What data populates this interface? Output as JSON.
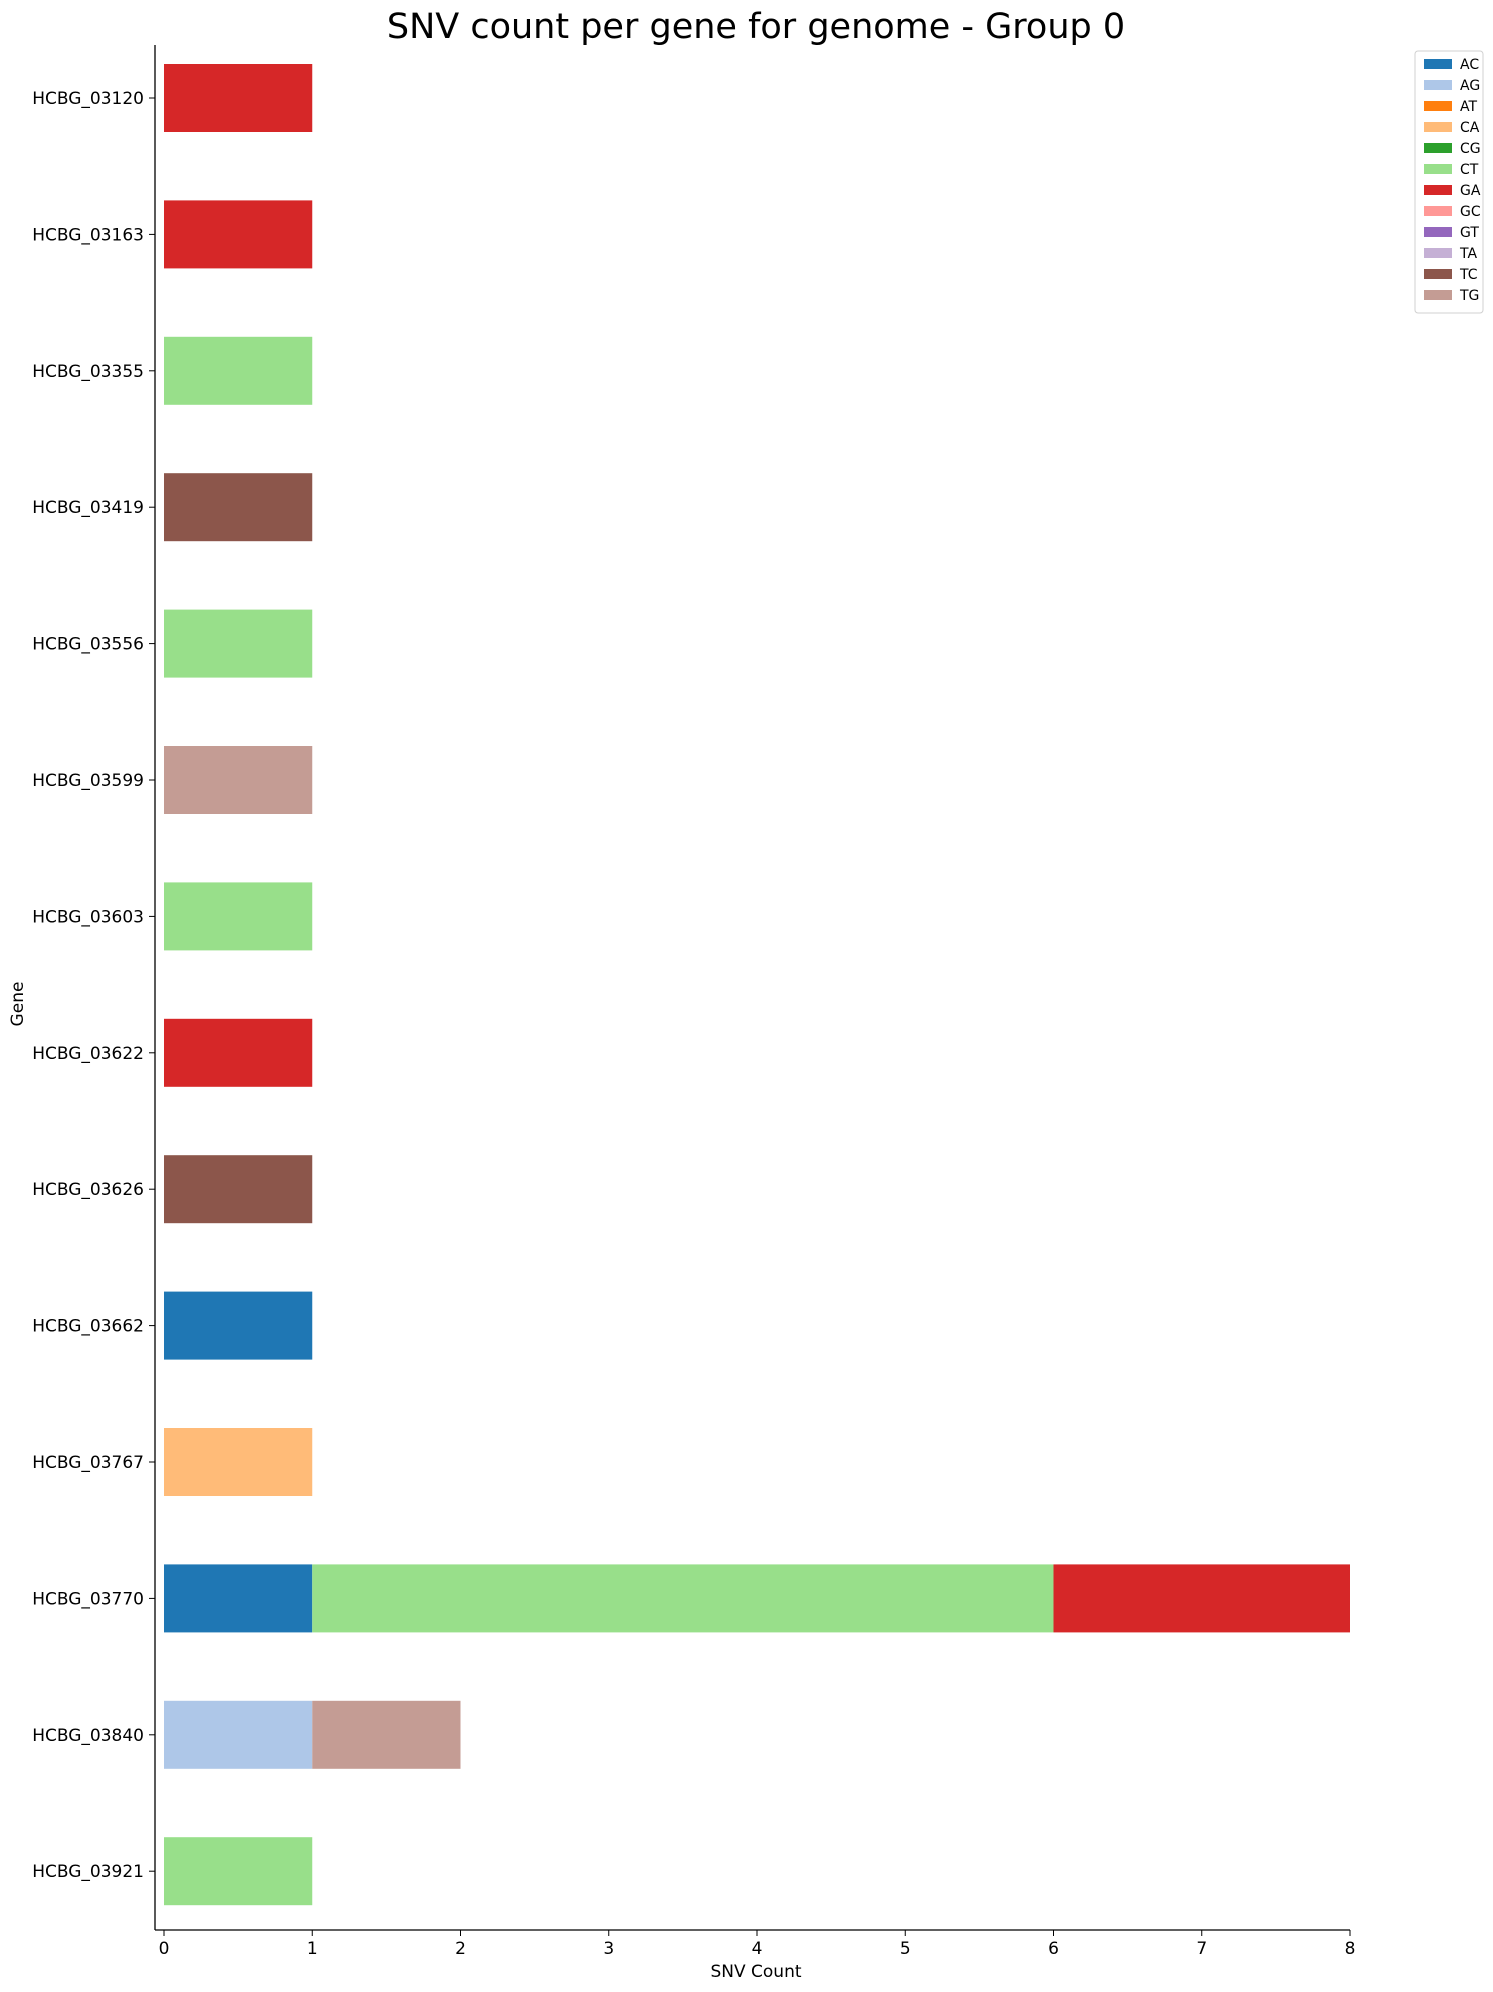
{
  "chart_data": {
    "type": "bar",
    "orientation": "horizontal",
    "stacked": true,
    "title": "SNV count per gene for genome - Group 0",
    "xlabel": "SNV Count",
    "ylabel": "Gene",
    "xlim": [
      0,
      8
    ],
    "xticks": [
      0,
      1,
      2,
      3,
      4,
      5,
      6,
      7,
      8
    ],
    "grid": false,
    "legend_position": "top-right, outside",
    "categories": [
      "HCBG_03120",
      "HCBG_03163",
      "HCBG_03355",
      "HCBG_03419",
      "HCBG_03556",
      "HCBG_03599",
      "HCBG_03603",
      "HCBG_03622",
      "HCBG_03626",
      "HCBG_03662",
      "HCBG_03767",
      "HCBG_03770",
      "HCBG_03840",
      "HCBG_03921"
    ],
    "series": [
      {
        "name": "AC",
        "color": "#1f77b4",
        "values": [
          0,
          0,
          0,
          0,
          0,
          0,
          0,
          0,
          0,
          1,
          0,
          1,
          0,
          0
        ]
      },
      {
        "name": "AG",
        "color": "#aec7e8",
        "values": [
          0,
          0,
          0,
          0,
          0,
          0,
          0,
          0,
          0,
          0,
          0,
          0,
          1,
          0
        ]
      },
      {
        "name": "AT",
        "color": "#ff7f0e",
        "values": [
          0,
          0,
          0,
          0,
          0,
          0,
          0,
          0,
          0,
          0,
          0,
          0,
          0,
          0
        ]
      },
      {
        "name": "CA",
        "color": "#ffbb78",
        "values": [
          0,
          0,
          0,
          0,
          0,
          0,
          0,
          0,
          0,
          0,
          1,
          0,
          0,
          0
        ]
      },
      {
        "name": "CG",
        "color": "#2ca02c",
        "values": [
          0,
          0,
          0,
          0,
          0,
          0,
          0,
          0,
          0,
          0,
          0,
          0,
          0,
          0
        ]
      },
      {
        "name": "CT",
        "color": "#98df8a",
        "values": [
          0,
          0,
          1,
          0,
          1,
          0,
          1,
          0,
          0,
          0,
          0,
          5,
          0,
          1
        ]
      },
      {
        "name": "GA",
        "color": "#d62728",
        "values": [
          1,
          1,
          0,
          0,
          0,
          0,
          0,
          1,
          0,
          0,
          0,
          2,
          0,
          0
        ]
      },
      {
        "name": "GC",
        "color": "#ff9896",
        "values": [
          0,
          0,
          0,
          0,
          0,
          0,
          0,
          0,
          0,
          0,
          0,
          0,
          0,
          0
        ]
      },
      {
        "name": "GT",
        "color": "#9467bd",
        "values": [
          0,
          0,
          0,
          0,
          0,
          0,
          0,
          0,
          0,
          0,
          0,
          0,
          0,
          0
        ]
      },
      {
        "name": "TA",
        "color": "#c5b0d5",
        "values": [
          0,
          0,
          0,
          0,
          0,
          0,
          0,
          0,
          0,
          0,
          0,
          0,
          0,
          0
        ]
      },
      {
        "name": "TC",
        "color": "#8c564b",
        "values": [
          0,
          0,
          0,
          1,
          0,
          0,
          0,
          0,
          1,
          0,
          0,
          0,
          0,
          0
        ]
      },
      {
        "name": "TG",
        "color": "#c49c94",
        "values": [
          0,
          0,
          0,
          0,
          0,
          1,
          0,
          0,
          0,
          0,
          0,
          0,
          1,
          0
        ]
      }
    ]
  }
}
